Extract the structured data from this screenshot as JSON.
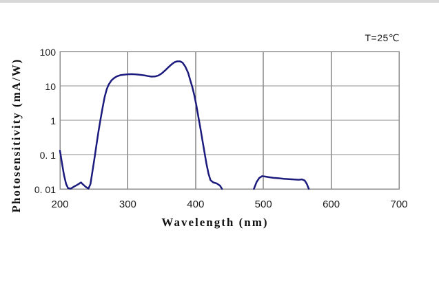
{
  "window": {
    "background": "#ffffff",
    "top_edge_color": "#d8d8d8"
  },
  "chart_data": {
    "type": "line",
    "title": "",
    "annotation": "T=25℃",
    "xlabel": "Wavelength (nm)",
    "ylabel": "Photosensitivity (mA/W)",
    "x_scale": "linear",
    "y_scale": "log",
    "xlim": [
      200,
      700
    ],
    "ylim": [
      0.01,
      100
    ],
    "grid": true,
    "legend": "none",
    "x_ticks": [
      {
        "value": 200,
        "label": "200"
      },
      {
        "value": 300,
        "label": "300"
      },
      {
        "value": 400,
        "label": "400"
      },
      {
        "value": 500,
        "label": "500"
      },
      {
        "value": 600,
        "label": "600"
      },
      {
        "value": 700,
        "label": "700"
      }
    ],
    "y_ticks": [
      {
        "value": 100,
        "label": "100"
      },
      {
        "value": 10,
        "label": "10"
      },
      {
        "value": 1,
        "label": "1"
      },
      {
        "value": 0.1,
        "label": "0. 1"
      },
      {
        "value": 0.01,
        "label": "0. 01"
      }
    ],
    "colors": {
      "curve": "#1b1b7e",
      "grid_vertical": "#474747",
      "grid_horizontal": "#8c8c8c",
      "border": "#8c8c8c",
      "text": "#111111"
    },
    "series": [
      {
        "name": "photosensitivity",
        "color": "#1b1b7e",
        "segments": [
          [
            [
              200,
              0.13
            ],
            [
              203,
              0.055
            ],
            [
              206,
              0.025
            ],
            [
              209,
              0.014
            ],
            [
              212,
              0.0105
            ],
            [
              216,
              0.0102
            ],
            [
              220,
              0.0115
            ],
            [
              225,
              0.013
            ],
            [
              229,
              0.0145
            ],
            [
              231,
              0.0155
            ],
            [
              234,
              0.0135
            ],
            [
              238,
              0.0115
            ],
            [
              242,
              0.0102
            ],
            [
              245,
              0.014
            ],
            [
              248,
              0.033
            ],
            [
              251,
              0.08
            ],
            [
              254,
              0.2
            ],
            [
              257,
              0.5
            ],
            [
              260,
              1.1
            ],
            [
              263,
              2.4
            ],
            [
              266,
              4.8
            ],
            [
              269,
              8
            ],
            [
              272,
              11
            ],
            [
              276,
              14.5
            ],
            [
              280,
              17
            ],
            [
              284,
              19
            ],
            [
              289,
              20.5
            ],
            [
              295,
              21.3
            ],
            [
              300,
              21.8
            ],
            [
              306,
              22
            ],
            [
              312,
              21.7
            ],
            [
              318,
              21
            ],
            [
              324,
              20.3
            ],
            [
              330,
              19.3
            ],
            [
              335,
              18.6
            ],
            [
              340,
              18.8
            ],
            [
              345,
              20
            ],
            [
              350,
              23
            ],
            [
              355,
              28
            ],
            [
              360,
              35
            ],
            [
              365,
              43
            ],
            [
              369,
              49
            ],
            [
              373,
              52
            ],
            [
              377,
              52
            ],
            [
              381,
              47
            ],
            [
              385,
              36
            ],
            [
              389,
              24
            ],
            [
              392,
              15
            ],
            [
              395,
              9.5
            ],
            [
              398,
              5.5
            ],
            [
              401,
              2.8
            ],
            [
              404,
              1.3
            ],
            [
              407,
              0.6
            ],
            [
              410,
              0.27
            ],
            [
              413,
              0.12
            ],
            [
              416,
              0.055
            ],
            [
              419,
              0.028
            ],
            [
              422,
              0.018
            ],
            [
              426,
              0.0155
            ],
            [
              431,
              0.0145
            ],
            [
              436,
              0.0125
            ],
            [
              439,
              0.01
            ]
          ],
          [
            [
              486,
              0.01
            ],
            [
              490,
              0.016
            ],
            [
              494,
              0.021
            ],
            [
              498,
              0.0235
            ],
            [
              502,
              0.023
            ],
            [
              508,
              0.022
            ],
            [
              515,
              0.021
            ],
            [
              522,
              0.0205
            ],
            [
              530,
              0.0198
            ],
            [
              538,
              0.0192
            ],
            [
              546,
              0.0188
            ],
            [
              552,
              0.0185
            ],
            [
              557,
              0.019
            ],
            [
              561,
              0.0175
            ],
            [
              564,
              0.014
            ],
            [
              567,
              0.01
            ]
          ]
        ]
      }
    ]
  }
}
